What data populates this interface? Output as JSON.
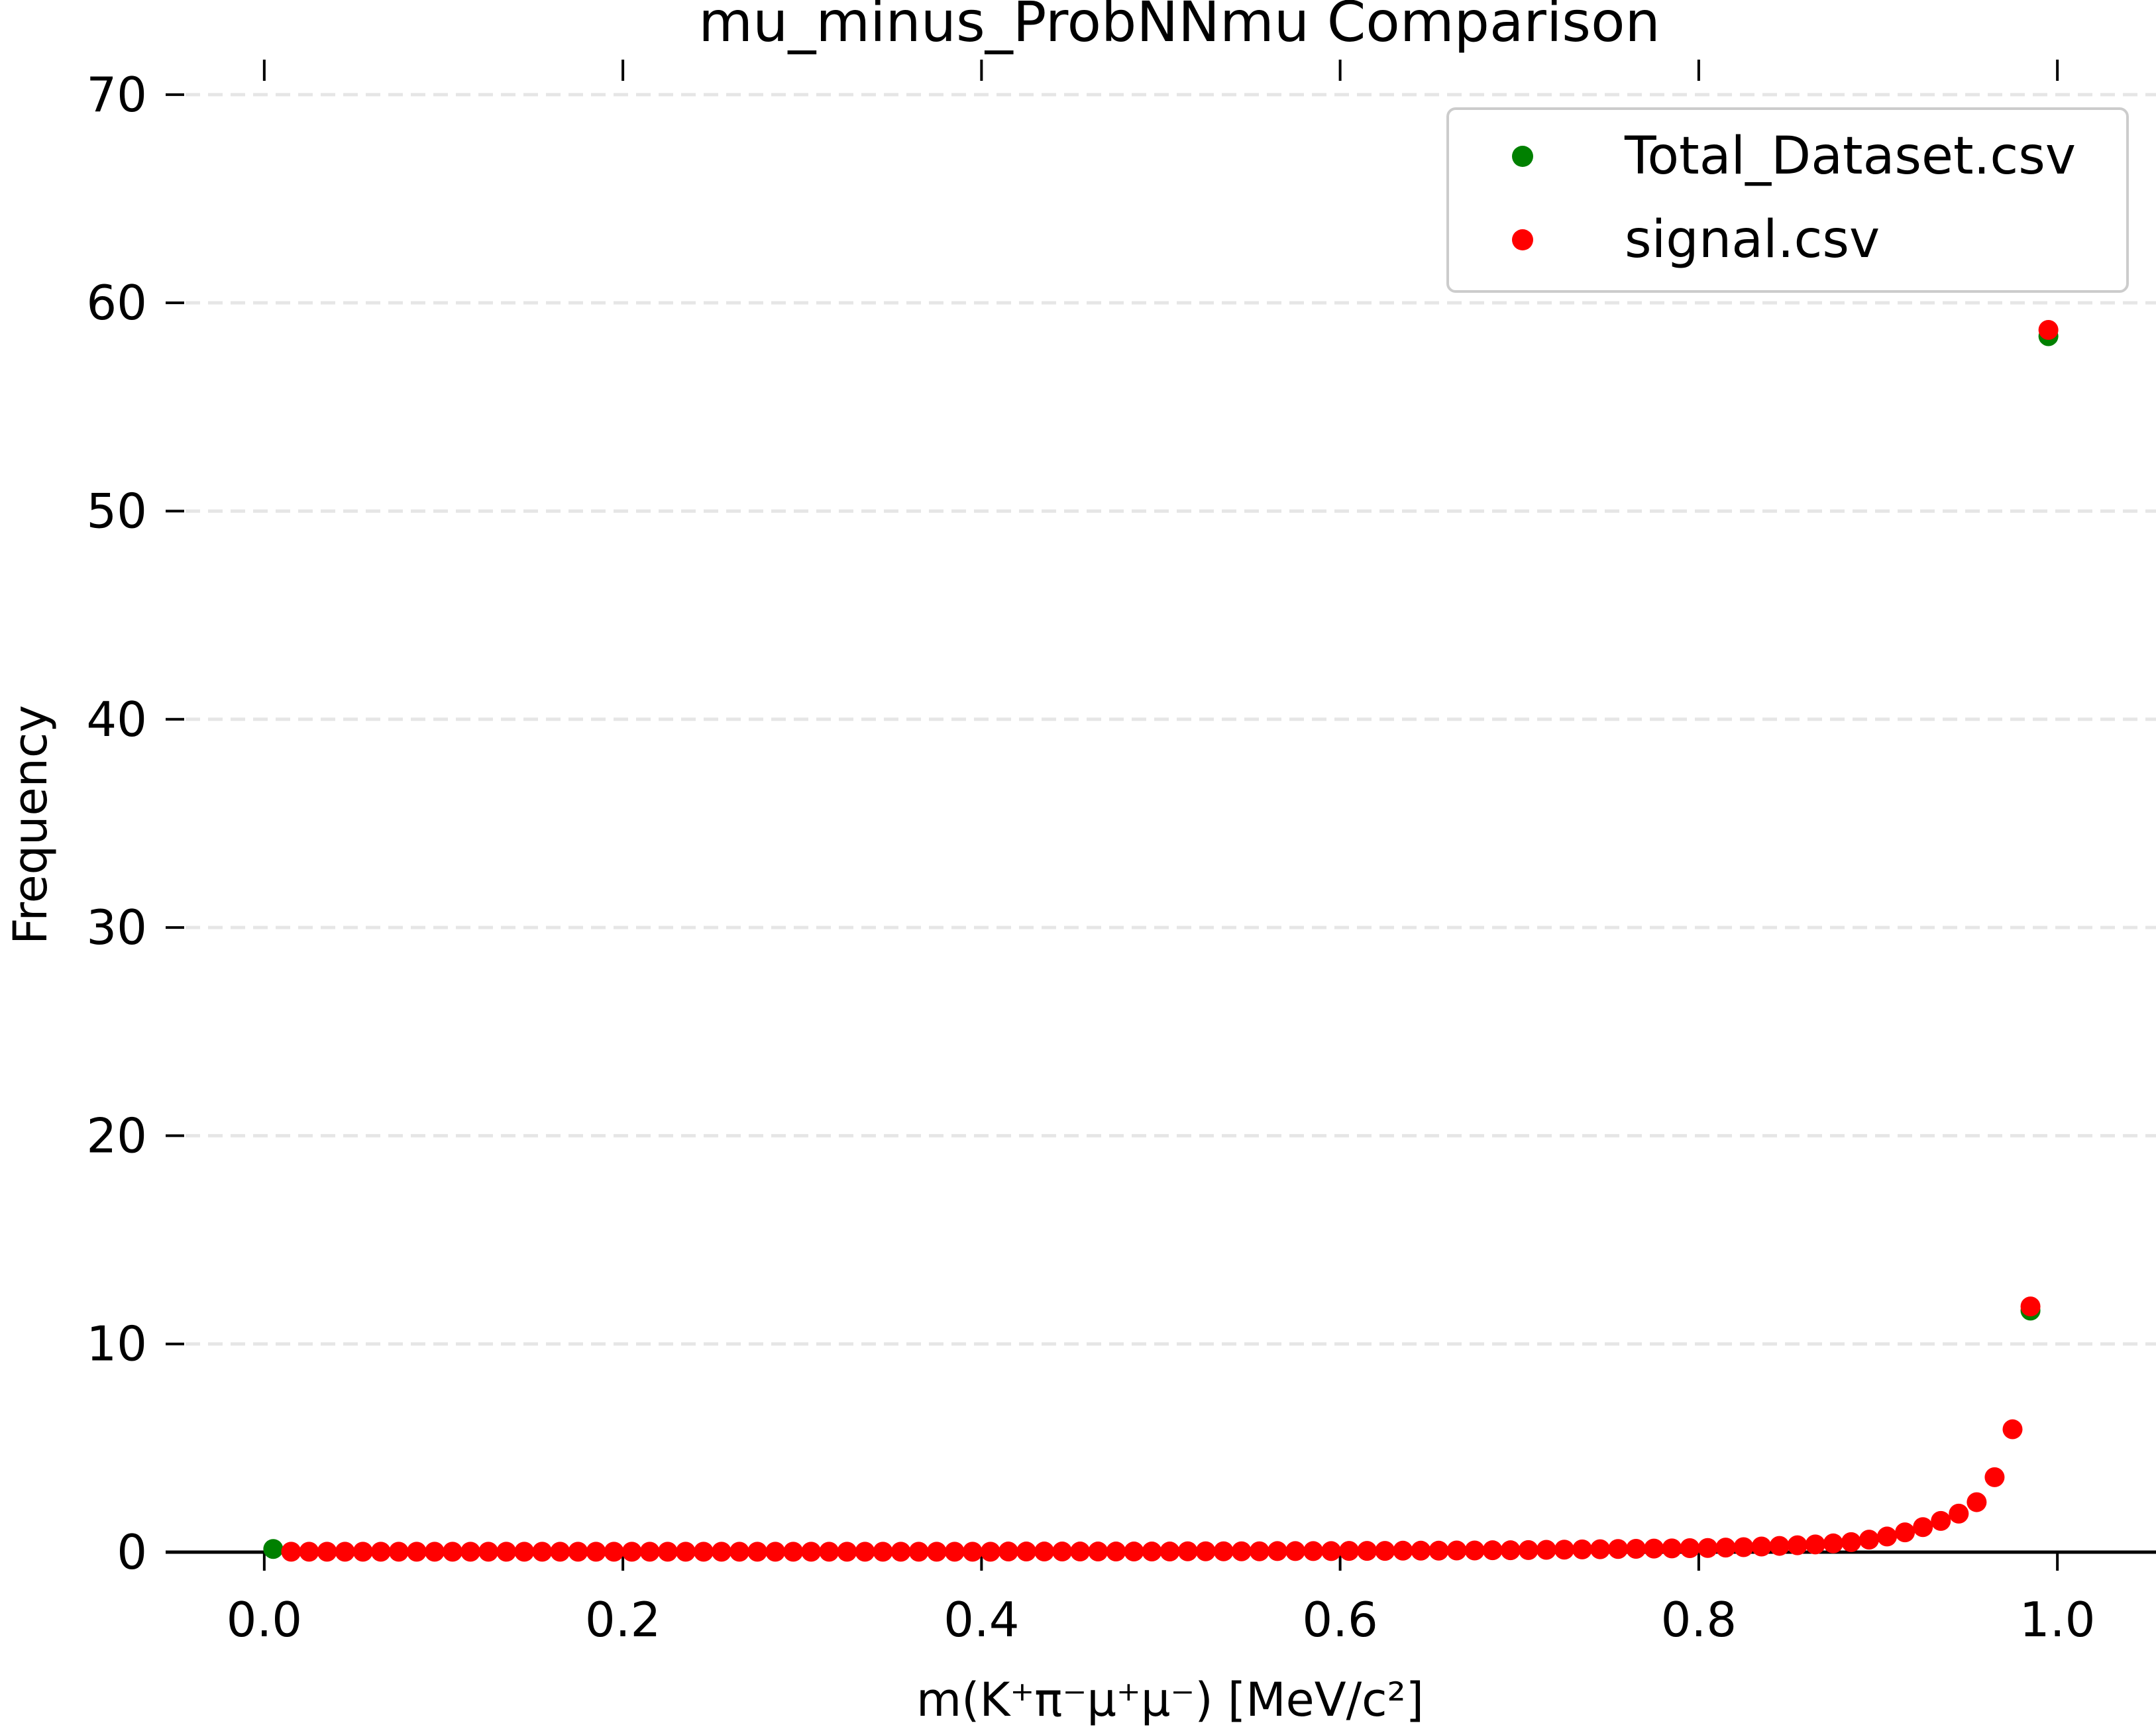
{
  "chart_data": {
    "type": "scatter",
    "title": "mu_minus_ProbNNmu Comparison",
    "xlabel": "m(K⁺π⁻μ⁺μ⁻) [MeV/c²]",
    "ylabel": "Frequency",
    "xlim": [
      -0.055,
      1.055
    ],
    "ylim": [
      0,
      72
    ],
    "xticks": [
      "0.0",
      "0.2",
      "0.4",
      "0.6",
      "0.8",
      "1.0"
    ],
    "xtick_values": [
      0.0,
      0.2,
      0.4,
      0.6,
      0.8,
      1.0
    ],
    "yticks": [
      "0",
      "10",
      "20",
      "30",
      "40",
      "50",
      "60",
      "70"
    ],
    "ytick_values": [
      0,
      10,
      20,
      30,
      40,
      50,
      60,
      70
    ],
    "grid": "horizontal dashed",
    "legend_position": "top-right",
    "series": [
      {
        "name": "Total_Dataset.csv",
        "color": "#008000",
        "x": [
          0.005,
          0.985,
          0.995
        ],
        "y": [
          0.15,
          11.6,
          58.4
        ]
      },
      {
        "name": "signal.csv",
        "color": "#ff0000",
        "x": [
          0.015,
          0.025,
          0.035,
          0.045,
          0.055,
          0.065,
          0.075,
          0.085,
          0.095,
          0.105,
          0.115,
          0.125,
          0.135,
          0.145,
          0.155,
          0.165,
          0.175,
          0.185,
          0.195,
          0.205,
          0.215,
          0.225,
          0.235,
          0.245,
          0.255,
          0.265,
          0.275,
          0.285,
          0.295,
          0.305,
          0.315,
          0.325,
          0.335,
          0.345,
          0.355,
          0.365,
          0.375,
          0.385,
          0.395,
          0.405,
          0.415,
          0.425,
          0.435,
          0.445,
          0.455,
          0.465,
          0.475,
          0.485,
          0.495,
          0.505,
          0.515,
          0.525,
          0.535,
          0.545,
          0.555,
          0.565,
          0.575,
          0.585,
          0.595,
          0.605,
          0.615,
          0.625,
          0.635,
          0.645,
          0.655,
          0.665,
          0.675,
          0.685,
          0.695,
          0.705,
          0.715,
          0.725,
          0.735,
          0.745,
          0.755,
          0.765,
          0.775,
          0.785,
          0.795,
          0.805,
          0.815,
          0.825,
          0.835,
          0.845,
          0.855,
          0.865,
          0.875,
          0.885,
          0.895,
          0.905,
          0.915,
          0.925,
          0.935,
          0.945,
          0.955,
          0.965,
          0.975,
          0.985,
          0.995
        ],
        "y": [
          0.02,
          0.02,
          0.02,
          0.02,
          0.02,
          0.02,
          0.02,
          0.02,
          0.02,
          0.02,
          0.02,
          0.02,
          0.02,
          0.02,
          0.02,
          0.02,
          0.02,
          0.02,
          0.02,
          0.02,
          0.02,
          0.02,
          0.02,
          0.02,
          0.02,
          0.02,
          0.02,
          0.02,
          0.02,
          0.02,
          0.02,
          0.02,
          0.02,
          0.02,
          0.02,
          0.02,
          0.02,
          0.02,
          0.02,
          0.02,
          0.03,
          0.03,
          0.03,
          0.03,
          0.03,
          0.03,
          0.03,
          0.03,
          0.03,
          0.03,
          0.04,
          0.04,
          0.04,
          0.04,
          0.04,
          0.05,
          0.05,
          0.05,
          0.05,
          0.06,
          0.06,
          0.06,
          0.07,
          0.07,
          0.07,
          0.08,
          0.08,
          0.09,
          0.09,
          0.1,
          0.11,
          0.12,
          0.13,
          0.14,
          0.15,
          0.16,
          0.17,
          0.18,
          0.19,
          0.2,
          0.22,
          0.24,
          0.27,
          0.3,
          0.33,
          0.37,
          0.42,
          0.48,
          0.6,
          0.75,
          0.95,
          1.2,
          1.5,
          1.85,
          2.4,
          3.6,
          5.9,
          11.8,
          58.7
        ]
      }
    ]
  }
}
